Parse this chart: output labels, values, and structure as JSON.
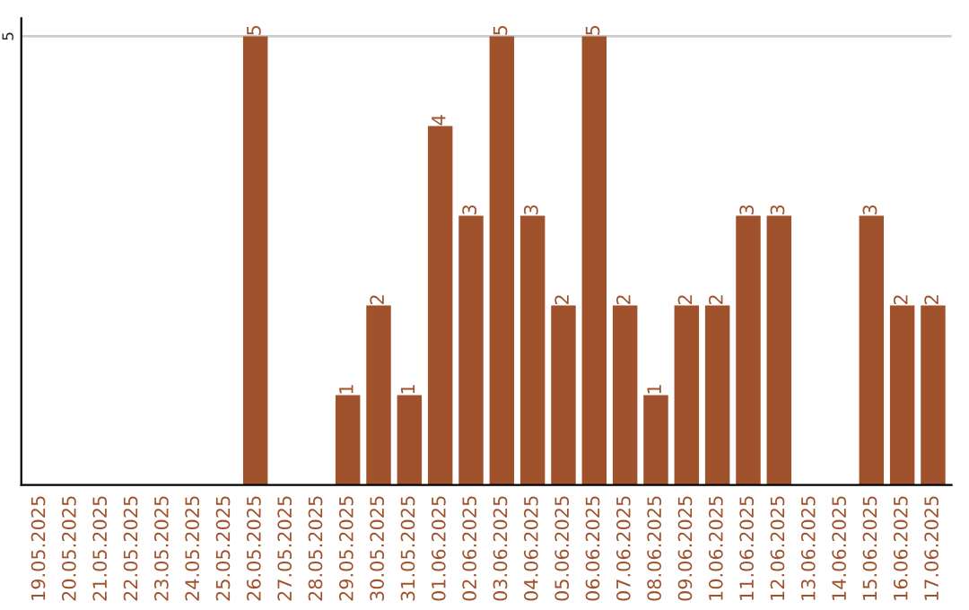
{
  "chart_data": {
    "type": "bar",
    "categories": [
      "19.05.2025",
      "20.05.2025",
      "21.05.2025",
      "22.05.2025",
      "23.05.2025",
      "24.05.2025",
      "25.05.2025",
      "26.05.2025",
      "27.05.2025",
      "28.05.2025",
      "29.05.2025",
      "30.05.2025",
      "31.05.2025",
      "01.06.2025",
      "02.06.2025",
      "03.06.2025",
      "04.06.2025",
      "05.06.2025",
      "06.06.2025",
      "07.06.2025",
      "08.06.2025",
      "09.06.2025",
      "10.06.2025",
      "11.06.2025",
      "12.06.2025",
      "13.06.2025",
      "14.06.2025",
      "15.06.2025",
      "16.06.2025",
      "17.06.2025"
    ],
    "values": [
      0,
      0,
      0,
      0,
      0,
      0,
      0,
      5,
      0,
      0,
      1,
      2,
      1,
      4,
      3,
      5,
      3,
      2,
      5,
      2,
      1,
      2,
      2,
      3,
      3,
      0,
      0,
      3,
      2,
      2
    ],
    "value_labels": [
      null,
      null,
      null,
      null,
      null,
      null,
      null,
      "5",
      null,
      null,
      "1",
      "2",
      "1",
      "4",
      "3",
      "5",
      "3",
      "2",
      "5",
      "2",
      "1",
      "2",
      "2",
      "3",
      "3",
      null,
      null,
      "3",
      "2",
      "2"
    ],
    "color": "#a0522d",
    "ylim": [
      0,
      5.2
    ],
    "yticks": [
      5
    ],
    "grid": "y"
  }
}
